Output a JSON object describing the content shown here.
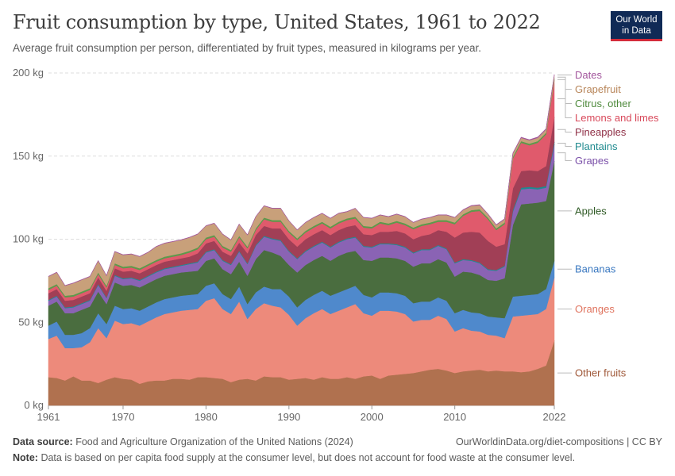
{
  "header": {
    "title": "Fruit consumption by type, United States, 1961 to 2022",
    "subtitle": "Average fruit consumption per person, differentiated by fruit types, measured in kilograms per year.",
    "logo_line1": "Our World",
    "logo_line2": "in Data"
  },
  "footer": {
    "source_label": "Data source:",
    "source_text": "Food and Agriculture Organization of the United Nations (2024)",
    "url": "OurWorldinData.org/diet-compositions | CC BY",
    "note_label": "Note:",
    "note_text": "Data is based on per capita food supply at the consumer level, but does not account for food waste at the consumer level."
  },
  "chart_data": {
    "type": "area",
    "stacked": true,
    "unit": "kg",
    "x": [
      1961,
      1962,
      1963,
      1964,
      1965,
      1966,
      1967,
      1968,
      1969,
      1970,
      1971,
      1972,
      1973,
      1974,
      1975,
      1976,
      1977,
      1978,
      1979,
      1980,
      1981,
      1982,
      1983,
      1984,
      1985,
      1986,
      1987,
      1988,
      1989,
      1990,
      1991,
      1992,
      1993,
      1994,
      1995,
      1996,
      1997,
      1998,
      1999,
      2000,
      2001,
      2002,
      2003,
      2004,
      2005,
      2006,
      2007,
      2008,
      2009,
      2010,
      2011,
      2012,
      2013,
      2014,
      2015,
      2016,
      2017,
      2018,
      2019,
      2020,
      2021,
      2022
    ],
    "xlim": [
      1961,
      2022
    ],
    "ylim": [
      0,
      200
    ],
    "y_ticks": [
      0,
      50,
      100,
      150,
      200
    ],
    "y_tick_labels": [
      "0 kg",
      "50 kg",
      "100 kg",
      "150 kg",
      "200 kg"
    ],
    "x_ticks": [
      1961,
      1970,
      1980,
      1990,
      2000,
      2010,
      2022
    ],
    "x_tick_labels": [
      "1961",
      "1970",
      "1980",
      "1990",
      "2000",
      "2010",
      "2022"
    ],
    "grid": "horizontal-dashed",
    "legend": "right-labels",
    "series": [
      {
        "name": "Other fruits",
        "color": "#b0714f",
        "values": [
          17,
          16.5,
          15,
          17.5,
          15,
          15,
          13.5,
          15.5,
          17,
          16,
          15.5,
          13,
          14.5,
          15,
          15,
          16,
          16,
          15.5,
          17,
          17,
          16.5,
          16,
          14,
          15.5,
          16,
          15,
          17.5,
          17,
          17,
          15.5,
          16,
          16.5,
          15.5,
          17,
          16,
          16,
          17,
          16,
          17.5,
          18,
          16,
          18,
          18.5,
          19,
          19.5,
          20.5,
          21.5,
          22,
          21,
          19.5,
          20.5,
          21,
          21.5,
          20.5,
          21,
          20.5,
          20.5,
          20,
          20.5,
          22,
          24,
          39
        ]
      },
      {
        "name": "Oranges",
        "color": "#ed8a7b",
        "values": [
          23,
          25.5,
          19.5,
          17,
          20,
          23,
          33,
          25,
          34,
          33,
          34,
          35,
          36,
          38,
          40,
          40,
          41,
          42,
          41,
          46,
          48,
          42,
          41,
          47,
          36,
          43,
          44,
          43,
          42,
          39,
          32,
          36,
          40,
          41,
          39,
          41,
          42,
          45,
          38,
          36,
          41,
          39,
          38,
          36,
          31,
          31,
          30,
          32,
          31,
          25,
          26,
          24,
          23,
          22,
          21,
          20,
          33,
          34,
          34,
          33,
          34,
          38
        ]
      },
      {
        "name": "Bananas",
        "color": "#4f89cc",
        "values": [
          8,
          8.5,
          8,
          8,
          8.5,
          8.5,
          9,
          8.5,
          9,
          9,
          9,
          9,
          9,
          9,
          9,
          9,
          9,
          9,
          9,
          9,
          9,
          9,
          9,
          9,
          9,
          10,
          10,
          10,
          11,
          11,
          11,
          11,
          11,
          11,
          11,
          11,
          11,
          11,
          11,
          11,
          11,
          11,
          11,
          11,
          11,
          11,
          11,
          11,
          11,
          11,
          11,
          11,
          11,
          11,
          11,
          12,
          12,
          12,
          12,
          12,
          12,
          10
        ]
      },
      {
        "name": "Apples",
        "color": "#4a6d3f",
        "values": [
          12,
          12,
          13,
          13,
          14,
          13,
          13,
          12,
          14,
          14,
          14,
          14,
          14,
          14,
          14,
          14,
          14,
          14,
          14,
          15,
          15,
          15,
          15,
          15,
          17,
          20,
          22,
          22,
          20,
          19,
          21,
          21,
          21,
          21,
          21,
          22,
          22,
          21,
          21,
          22,
          21,
          21,
          21,
          21,
          22,
          23,
          23,
          23,
          23,
          22,
          23,
          24,
          23,
          22,
          22,
          24,
          43,
          55,
          55,
          55,
          53,
          60
        ]
      },
      {
        "name": "Grapes",
        "color": "#8a63b4",
        "values": [
          3,
          3,
          3,
          3.5,
          3.5,
          3.5,
          4,
          3.5,
          4,
          4,
          4,
          4,
          4,
          4,
          4,
          4,
          4,
          4.5,
          5,
          5,
          5,
          5,
          5.5,
          6,
          7,
          8,
          8,
          8,
          9,
          8,
          8,
          8,
          8,
          8,
          8,
          8,
          8,
          8,
          8,
          8,
          8,
          8,
          8,
          8,
          8,
          8,
          8,
          8,
          8,
          8,
          7,
          7,
          7,
          6,
          6,
          7,
          8,
          9,
          9,
          8,
          8,
          10
        ]
      },
      {
        "name": "Plantains",
        "color": "#1f8a8f",
        "values": [
          0.5,
          0.5,
          0.5,
          0.5,
          0.5,
          0.5,
          0.5,
          0.5,
          0.5,
          0.5,
          0.5,
          0.5,
          0.5,
          0.5,
          0.5,
          0.5,
          0.5,
          0.5,
          0.5,
          0.5,
          0.5,
          0.5,
          0.5,
          0.5,
          0.5,
          0.5,
          0.5,
          0.5,
          0.5,
          0.5,
          0.5,
          0.5,
          0.5,
          0.5,
          0.5,
          0.5,
          0.5,
          0.5,
          0.5,
          0.5,
          0.5,
          0.5,
          0.5,
          0.5,
          0.5,
          0.5,
          0.5,
          0.5,
          0.5,
          0.5,
          0.5,
          0.5,
          0.5,
          0.5,
          0.5,
          0.5,
          1,
          1,
          1,
          1,
          1,
          1.5
        ]
      },
      {
        "name": "Pineapples",
        "color": "#a13f56",
        "values": [
          4,
          4,
          4,
          4,
          4,
          4,
          4,
          4,
          4,
          4,
          4,
          4,
          4,
          4,
          4,
          4,
          4,
          4,
          5,
          5,
          5,
          5,
          5,
          5,
          6,
          6,
          6,
          6,
          7,
          7,
          7,
          7,
          7,
          7,
          7,
          7,
          7,
          7,
          7,
          7,
          7,
          7,
          8,
          8,
          8,
          8,
          9,
          9,
          10,
          15,
          16,
          17,
          18,
          17,
          14,
          13,
          13,
          10,
          10,
          10,
          12,
          15
        ]
      },
      {
        "name": "Lemons and limes",
        "color": "#e05a6c",
        "values": [
          2,
          2,
          2,
          2,
          2,
          2,
          2,
          2,
          2,
          2,
          2,
          2,
          2,
          2,
          2,
          2,
          2,
          2.5,
          2.5,
          2.5,
          2.5,
          2.5,
          2.5,
          3,
          3,
          3,
          4,
          4,
          4,
          4,
          4,
          4,
          4,
          4,
          4,
          4,
          4,
          4,
          4,
          4,
          5,
          4,
          5,
          5,
          6,
          6,
          6,
          5,
          6,
          8,
          10,
          12,
          13,
          13,
          10,
          12,
          18,
          17,
          15,
          17,
          19,
          22
        ]
      },
      {
        "name": "Citrus, other",
        "color": "#5c9a4b",
        "values": [
          1,
          1,
          1,
          1,
          1,
          1,
          1,
          1,
          1,
          1,
          1,
          1,
          1,
          1,
          1,
          1,
          1,
          1,
          1,
          1,
          1,
          1,
          1,
          1,
          1,
          1,
          1,
          1,
          1,
          1,
          1,
          1,
          1,
          1,
          1,
          1,
          1,
          1,
          1,
          1,
          1,
          1,
          1,
          1,
          1,
          1,
          1,
          1,
          1,
          1,
          1,
          1,
          1,
          1,
          1,
          1,
          1,
          1,
          1,
          1,
          1,
          1
        ]
      },
      {
        "name": "Grapefruit",
        "color": "#c8a07a",
        "values": [
          7,
          7,
          6,
          7,
          7,
          7,
          7,
          6,
          7,
          7,
          7,
          7,
          7,
          8,
          8,
          8,
          8,
          8,
          8,
          7,
          7,
          7,
          6,
          7,
          7,
          7,
          7,
          7,
          7,
          6,
          5,
          5,
          5,
          5,
          5,
          5,
          4,
          5,
          5,
          5,
          4,
          4,
          4,
          4,
          3,
          3,
          3,
          3,
          3,
          3,
          2.5,
          2.5,
          2.5,
          2,
          2,
          2,
          2,
          2,
          2,
          2,
          2,
          2
        ]
      },
      {
        "name": "Dates",
        "color": "#a2559c",
        "values": [
          0.2,
          0.2,
          0.2,
          0.2,
          0.2,
          0.2,
          0.2,
          0.2,
          0.2,
          0.2,
          0.2,
          0.2,
          0.2,
          0.2,
          0.2,
          0.2,
          0.2,
          0.2,
          0.2,
          0.2,
          0.2,
          0.2,
          0.2,
          0.2,
          0.2,
          0.2,
          0.2,
          0.2,
          0.2,
          0.2,
          0.2,
          0.2,
          0.2,
          0.2,
          0.2,
          0.2,
          0.2,
          0.2,
          0.2,
          0.2,
          0.2,
          0.2,
          0.2,
          0.2,
          0.2,
          0.2,
          0.2,
          0.2,
          0.2,
          0.2,
          0.3,
          0.3,
          0.3,
          0.3,
          0.3,
          0.3,
          0.4,
          0.4,
          0.4,
          0.5,
          0.5,
          0.6
        ]
      }
    ],
    "legend_labels": [
      {
        "name": "Dates",
        "color": "#a2559c"
      },
      {
        "name": "Grapefruit",
        "color": "#b8865a"
      },
      {
        "name": "Citrus, other",
        "color": "#4e8a3c"
      },
      {
        "name": "Lemons and limes",
        "color": "#d8485a"
      },
      {
        "name": "Pineapples",
        "color": "#8f2f46"
      },
      {
        "name": "Plantains",
        "color": "#1f8a8f"
      },
      {
        "name": "Grapes",
        "color": "#7a4fa8"
      },
      {
        "name": "Apples",
        "color": "#2f5a25"
      },
      {
        "name": "Bananas",
        "color": "#3a78c0"
      },
      {
        "name": "Oranges",
        "color": "#e0745f"
      },
      {
        "name": "Other fruits",
        "color": "#a0593a"
      }
    ]
  }
}
